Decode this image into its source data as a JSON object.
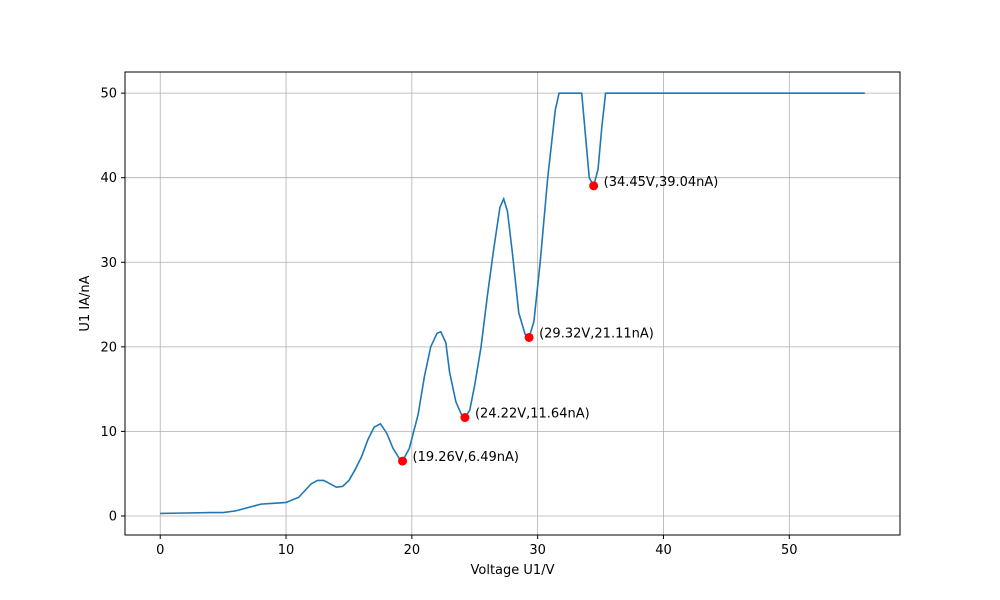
{
  "chart_data": {
    "type": "line",
    "title": "",
    "xlabel": "Voltage U1/V",
    "ylabel": "U1 IA/nA",
    "xlim": [
      -2.8,
      58.8
    ],
    "ylim": [
      -2.25,
      52.5
    ],
    "xticks": [
      0,
      10,
      20,
      30,
      40,
      50
    ],
    "yticks": [
      0,
      10,
      20,
      30,
      40,
      50
    ],
    "grid": true,
    "colors": {
      "line": "#1f77b4",
      "marker": "#ff0000",
      "grid": "#b0b0b0",
      "axes": "#000000"
    },
    "series": [
      {
        "x": [
          0,
          2,
          4,
          5,
          6,
          7,
          8,
          9,
          10,
          11,
          12,
          12.5,
          13,
          13.5,
          14,
          14.5,
          15,
          15.5,
          16,
          16.5,
          17,
          17.5,
          18,
          18.5,
          19,
          19.26,
          19.8,
          20.5,
          21,
          21.5,
          22,
          22.3,
          22.7,
          23,
          23.5,
          24,
          24.22,
          24.6,
          25,
          25.5,
          26,
          26.5,
          27,
          27.3,
          27.6,
          28,
          28.5,
          29,
          29.32,
          29.7,
          30.2,
          30.8,
          31.4,
          31.7,
          32,
          33,
          33.5,
          33.8,
          34.1,
          34.45,
          34.8,
          35.1,
          35.4,
          36,
          40,
          50,
          56
        ],
        "y": [
          0.3,
          0.35,
          0.4,
          0.4,
          0.6,
          1.0,
          1.4,
          1.5,
          1.6,
          2.2,
          3.8,
          4.2,
          4.2,
          3.8,
          3.4,
          3.5,
          4.2,
          5.5,
          7.0,
          9.0,
          10.5,
          10.9,
          9.8,
          8.0,
          6.8,
          6.49,
          8.0,
          12.0,
          16.5,
          20.0,
          21.6,
          21.8,
          20.5,
          17.0,
          13.5,
          11.8,
          11.64,
          12.5,
          15.5,
          20.0,
          26.0,
          31.5,
          36.5,
          37.5,
          36.0,
          31.0,
          24.0,
          21.5,
          21.11,
          23.0,
          30.0,
          40.0,
          48.0,
          50.0,
          50.0,
          50.0,
          50.0,
          45.0,
          40.0,
          39.04,
          41.0,
          46.0,
          50.0,
          50.0,
          50.0,
          50.0,
          50.0
        ]
      }
    ],
    "markers": [
      {
        "x": 19.26,
        "y": 6.49,
        "label": "(19.26V,6.49nA)"
      },
      {
        "x": 24.22,
        "y": 11.64,
        "label": "(24.22V,11.64nA)"
      },
      {
        "x": 29.32,
        "y": 21.11,
        "label": "(29.32V,21.11nA)"
      },
      {
        "x": 34.45,
        "y": 39.04,
        "label": "(34.45V,39.04nA)"
      }
    ]
  }
}
